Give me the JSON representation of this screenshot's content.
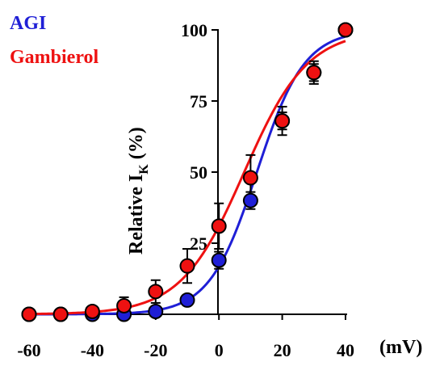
{
  "chart_data": {
    "type": "scatter",
    "x_ticks": [
      "-60",
      "-40",
      "-20",
      "0",
      "20",
      "40"
    ],
    "y_ticks": [
      "25",
      "50",
      "75",
      "100"
    ],
    "xlim": [
      -60,
      40
    ],
    "ylim": [
      0,
      100
    ],
    "x_unit": "(mV)",
    "ylabel": {
      "main": "Relative I",
      "sub": "K",
      "tail": " (%)"
    },
    "series": [
      {
        "name": "AGI",
        "color": "#1f1fd6",
        "points": [
          {
            "x": -60,
            "y": 0,
            "err": 0
          },
          {
            "x": -50,
            "y": 0,
            "err": 0
          },
          {
            "x": -40,
            "y": 0,
            "err": 0
          },
          {
            "x": -30,
            "y": 0,
            "err": 0
          },
          {
            "x": -20,
            "y": 1,
            "err": 0
          },
          {
            "x": -10,
            "y": 5,
            "err": 1
          },
          {
            "x": 0,
            "y": 19,
            "err": 3
          },
          {
            "x": 10,
            "y": 40,
            "err": 3
          },
          {
            "x": 20,
            "y": 68,
            "err": 3
          },
          {
            "x": 30,
            "y": 85,
            "err": 3
          },
          {
            "x": 40,
            "y": 100,
            "err": 0
          }
        ],
        "fit": {
          "v_half": 12,
          "slope": 7.5
        }
      },
      {
        "name": "Gambierol",
        "color": "#ee1111",
        "points": [
          {
            "x": -60,
            "y": 0,
            "err": 0
          },
          {
            "x": -50,
            "y": 0,
            "err": 0
          },
          {
            "x": -40,
            "y": 1,
            "err": 1
          },
          {
            "x": -30,
            "y": 3,
            "err": 3
          },
          {
            "x": -20,
            "y": 8,
            "err": 4
          },
          {
            "x": -10,
            "y": 17,
            "err": 6
          },
          {
            "x": 0,
            "y": 31,
            "err": 8
          },
          {
            "x": 10,
            "y": 48,
            "err": 8
          },
          {
            "x": 20,
            "y": 68,
            "err": 5
          },
          {
            "x": 30,
            "y": 85,
            "err": 4
          },
          {
            "x": 40,
            "y": 100,
            "err": 0
          }
        ],
        "fit": {
          "v_half": 8,
          "slope": 10
        }
      }
    ]
  }
}
